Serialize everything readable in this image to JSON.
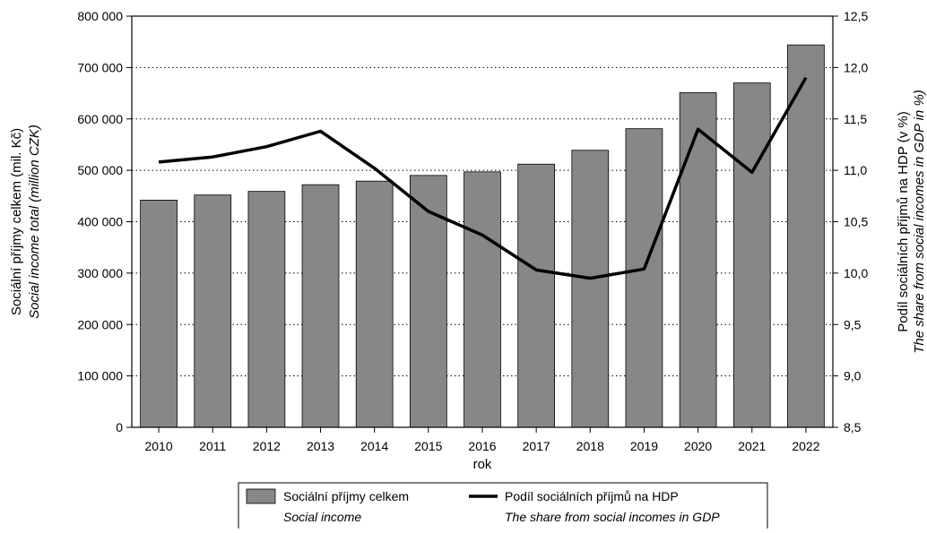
{
  "chart_data": {
    "type": "bar",
    "categories": [
      "2010",
      "2011",
      "2012",
      "2013",
      "2014",
      "2015",
      "2016",
      "2017",
      "2018",
      "2019",
      "2020",
      "2021",
      "2022"
    ],
    "series": [
      {
        "name": "Sociální příjmy celkem",
        "name_en": "Social income",
        "type": "bar",
        "axis": "left",
        "color": "#878787",
        "values": [
          442000,
          452000,
          459000,
          472000,
          479000,
          490000,
          497000,
          512000,
          539000,
          581000,
          651000,
          670000,
          744000
        ]
      },
      {
        "name": "Podíl sociálních příjmů na HDP",
        "name_en": "The share from social incomes in GDP",
        "type": "line",
        "axis": "right",
        "color": "#000000",
        "values": [
          11.08,
          11.13,
          11.23,
          11.38,
          11.02,
          10.6,
          10.37,
          10.03,
          9.95,
          10.04,
          11.4,
          10.98,
          11.9
        ]
      }
    ],
    "xlabel": "rok",
    "ylabel_left": "Sociální příjmy celkem (mil. Kč)",
    "ylabel_left_en": "Social income total (million CZK)",
    "ylabel_right": "Podíl sociálních příjmů na HDP (v %)",
    "ylabel_right_en": "The share from social incomes in GDP in %)",
    "ylim_left": [
      0,
      800000
    ],
    "ylim_right": [
      8.5,
      12.5
    ],
    "yticks_left": [
      "0",
      "100 000",
      "200 000",
      "300 000",
      "400 000",
      "500 000",
      "600 000",
      "700 000",
      "800 000"
    ],
    "yticks_right": [
      "8,5",
      "9,0",
      "9,5",
      "10,0",
      "10,5",
      "11,0",
      "11,5",
      "12,0",
      "12,5"
    ],
    "grid": "horizontal dotted",
    "legend_position": "bottom"
  }
}
